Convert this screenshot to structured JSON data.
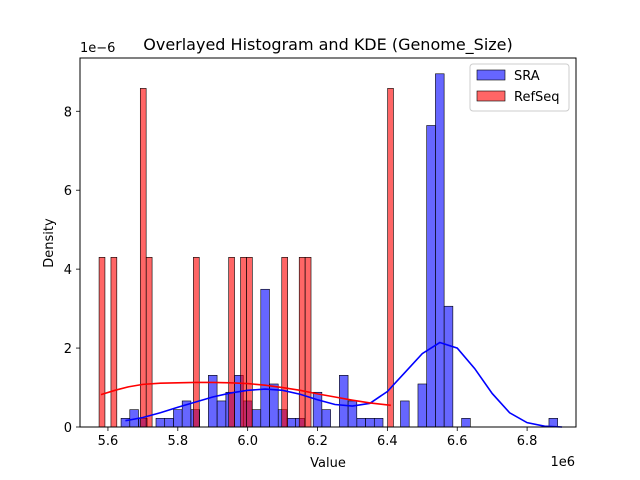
{
  "chart_data": {
    "type": "bar",
    "title": "Overlayed Histogram and KDE (Genome_Size)",
    "xlabel": "Value",
    "ylabel": "Density",
    "x_offset_label": "1e6",
    "y_offset_label": "1e−6",
    "x_scale": 1000000,
    "y_scale": 1e-06,
    "xlim": [
      5.52,
      6.94
    ],
    "ylim": [
      0,
      9.35
    ],
    "xticks": [
      5.6,
      5.8,
      6.0,
      6.2,
      6.4,
      6.6,
      6.8
    ],
    "xtick_labels": [
      "5.6",
      "5.8",
      "6.0",
      "6.2",
      "6.4",
      "6.6",
      "6.8"
    ],
    "yticks": [
      0,
      2,
      4,
      6,
      8
    ],
    "ytick_labels": [
      "0",
      "2",
      "4",
      "6",
      "8"
    ],
    "legend_position": "top-right",
    "series": [
      {
        "name": "SRA",
        "color": "#0000ff",
        "bin_width": 0.0249,
        "bins": [
          [
            5.65,
            0.22
          ],
          [
            5.675,
            0.44
          ],
          [
            5.7,
            0.22
          ],
          [
            5.725,
            0.0
          ],
          [
            5.75,
            0.22
          ],
          [
            5.775,
            0.22
          ],
          [
            5.8,
            0.44
          ],
          [
            5.825,
            0.66
          ],
          [
            5.85,
            0.44
          ],
          [
            5.875,
            0.0
          ],
          [
            5.9,
            1.31
          ],
          [
            5.925,
            0.66
          ],
          [
            5.95,
            0.88
          ],
          [
            5.975,
            1.31
          ],
          [
            6.0,
            0.66
          ],
          [
            6.025,
            0.44
          ],
          [
            6.05,
            3.49
          ],
          [
            6.075,
            1.09
          ],
          [
            6.1,
            0.44
          ],
          [
            6.125,
            0.22
          ],
          [
            6.15,
            0.22
          ],
          [
            6.175,
            0.0
          ],
          [
            6.2,
            0.88
          ],
          [
            6.225,
            0.44
          ],
          [
            6.25,
            0.0
          ],
          [
            6.275,
            1.31
          ],
          [
            6.3,
            0.66
          ],
          [
            6.325,
            0.22
          ],
          [
            6.35,
            0.22
          ],
          [
            6.375,
            0.22
          ],
          [
            6.4,
            0.0
          ],
          [
            6.425,
            0.0
          ],
          [
            6.45,
            0.66
          ],
          [
            6.475,
            0.0
          ],
          [
            6.5,
            1.09
          ],
          [
            6.525,
            7.64
          ],
          [
            6.55,
            8.95
          ],
          [
            6.575,
            3.06
          ],
          [
            6.6,
            0.0
          ],
          [
            6.625,
            0.22
          ],
          [
            6.875,
            0.22
          ]
        ],
        "kde": [
          [
            5.65,
            0.16
          ],
          [
            5.7,
            0.24
          ],
          [
            5.75,
            0.36
          ],
          [
            5.8,
            0.5
          ],
          [
            5.85,
            0.63
          ],
          [
            5.9,
            0.76
          ],
          [
            5.95,
            0.86
          ],
          [
            6.0,
            0.93
          ],
          [
            6.05,
            0.96
          ],
          [
            6.1,
            0.93
          ],
          [
            6.15,
            0.83
          ],
          [
            6.2,
            0.69
          ],
          [
            6.25,
            0.57
          ],
          [
            6.3,
            0.53
          ],
          [
            6.35,
            0.6
          ],
          [
            6.4,
            0.9
          ],
          [
            6.45,
            1.38
          ],
          [
            6.5,
            1.86
          ],
          [
            6.55,
            2.14
          ],
          [
            6.6,
            2.0
          ],
          [
            6.65,
            1.48
          ],
          [
            6.7,
            0.85
          ],
          [
            6.75,
            0.36
          ],
          [
            6.8,
            0.11
          ],
          [
            6.85,
            0.02
          ],
          [
            6.9,
            0.0
          ]
        ]
      },
      {
        "name": "RefSeq",
        "color": "#ff0000",
        "bin_width": 0.0168,
        "bins": [
          [
            5.583,
            4.3
          ],
          [
            5.617,
            4.3
          ],
          [
            5.701,
            8.58
          ],
          [
            5.718,
            4.3
          ],
          [
            5.853,
            4.3
          ],
          [
            5.954,
            4.3
          ],
          [
            5.988,
            4.3
          ],
          [
            6.005,
            4.3
          ],
          [
            6.106,
            4.3
          ],
          [
            6.156,
            4.3
          ],
          [
            6.173,
            4.3
          ],
          [
            6.409,
            8.58
          ]
        ],
        "kde": [
          [
            5.58,
            0.82
          ],
          [
            5.62,
            0.93
          ],
          [
            5.66,
            1.02
          ],
          [
            5.7,
            1.08
          ],
          [
            5.75,
            1.11
          ],
          [
            5.8,
            1.12
          ],
          [
            5.85,
            1.13
          ],
          [
            5.9,
            1.13
          ],
          [
            5.95,
            1.12
          ],
          [
            6.0,
            1.1
          ],
          [
            6.05,
            1.06
          ],
          [
            6.1,
            1.0
          ],
          [
            6.15,
            0.93
          ],
          [
            6.2,
            0.84
          ],
          [
            6.25,
            0.76
          ],
          [
            6.3,
            0.68
          ],
          [
            6.35,
            0.61
          ],
          [
            6.41,
            0.55
          ]
        ]
      }
    ]
  }
}
